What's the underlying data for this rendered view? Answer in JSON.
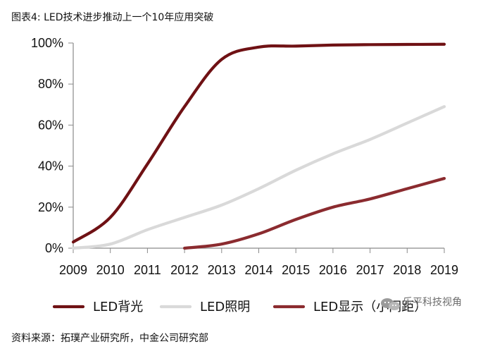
{
  "page": {
    "title": "图表4: LED技术进步推动上一个10年应用突破",
    "source": "资料来源：拓璞产业研究所，中金公司研究部",
    "watermark": "乐平科技视角"
  },
  "colors": {
    "backlight": "#6f1114",
    "lighting": "#d9d9d9",
    "display": "#8b2b2f",
    "axis": "#8a8a8a",
    "text": "#111111"
  },
  "chart_data": {
    "type": "line",
    "title": "图表4: LED技术进步推动上一个10年应用突破",
    "xlabel": "",
    "ylabel": "",
    "x": [
      "2009",
      "2010",
      "2011",
      "2012",
      "2013",
      "2014",
      "2015",
      "2016",
      "2017",
      "2018",
      "2019"
    ],
    "y_ticks": [
      "0%",
      "20%",
      "40%",
      "60%",
      "80%",
      "100%"
    ],
    "ylim": [
      0,
      100
    ],
    "legend_position": "bottom",
    "series": [
      {
        "name": "LED背光",
        "color": "#6f1114",
        "values": [
          3,
          15,
          41,
          69,
          92,
          98,
          98.5,
          99,
          99.2,
          99.3,
          99.4
        ]
      },
      {
        "name": "LED照明",
        "color": "#d9d9d9",
        "values": [
          0,
          2,
          9,
          15,
          21,
          29,
          38,
          46,
          53,
          61,
          69
        ]
      },
      {
        "name": "LED显示（小间距）",
        "color": "#8b2b2f",
        "values": [
          null,
          null,
          null,
          0,
          2,
          7,
          14,
          20,
          24,
          29,
          34
        ]
      }
    ]
  }
}
